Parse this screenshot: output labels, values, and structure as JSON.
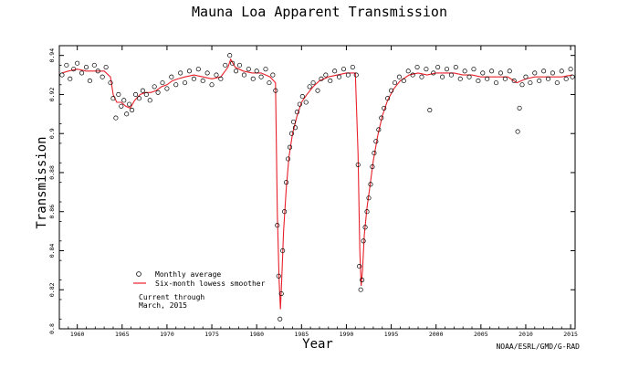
{
  "chart_data": {
    "type": "scatter",
    "title": "Mauna Loa Apparent Transmission",
    "xlabel": "Year",
    "ylabel": "Transmission",
    "xlim": [
      1958,
      2015.5
    ],
    "ylim": [
      0.8,
      0.945
    ],
    "x_ticks": [
      1960,
      1965,
      1970,
      1975,
      1980,
      1985,
      1990,
      1995,
      2000,
      2005,
      2010,
      2015
    ],
    "y_ticks": [
      0.8,
      0.82,
      0.84,
      0.86,
      0.88,
      0.9,
      0.92,
      0.94
    ],
    "y_tick_labels": [
      "0.8",
      "0.82",
      "0.84",
      "0.86",
      "0.88",
      "0.9",
      "0.92",
      "0.94"
    ],
    "grid": false,
    "legend_placement": "lower-left",
    "annotations": [
      "Current through",
      "March, 2015"
    ],
    "credit": "NOAA/ESRL/GMD/G-RAD",
    "series": [
      {
        "name": "Monthly average",
        "marker": "open-circle",
        "color": "#000000",
        "points": [
          [
            1958.3,
            0.93
          ],
          [
            1958.8,
            0.935
          ],
          [
            1959.2,
            0.928
          ],
          [
            1959.6,
            0.933
          ],
          [
            1960.0,
            0.936
          ],
          [
            1960.5,
            0.931
          ],
          [
            1961.0,
            0.934
          ],
          [
            1961.4,
            0.927
          ],
          [
            1961.9,
            0.935
          ],
          [
            1962.3,
            0.932
          ],
          [
            1962.8,
            0.929
          ],
          [
            1963.2,
            0.934
          ],
          [
            1963.7,
            0.926
          ],
          [
            1964.0,
            0.918
          ],
          [
            1964.3,
            0.908
          ],
          [
            1964.6,
            0.92
          ],
          [
            1964.9,
            0.914
          ],
          [
            1965.2,
            0.917
          ],
          [
            1965.5,
            0.91
          ],
          [
            1965.8,
            0.915
          ],
          [
            1966.1,
            0.912
          ],
          [
            1966.5,
            0.92
          ],
          [
            1966.9,
            0.918
          ],
          [
            1967.3,
            0.922
          ],
          [
            1967.7,
            0.92
          ],
          [
            1968.1,
            0.917
          ],
          [
            1968.6,
            0.924
          ],
          [
            1969.0,
            0.921
          ],
          [
            1969.5,
            0.926
          ],
          [
            1970.0,
            0.923
          ],
          [
            1970.5,
            0.929
          ],
          [
            1971.0,
            0.925
          ],
          [
            1971.5,
            0.931
          ],
          [
            1972.0,
            0.926
          ],
          [
            1972.5,
            0.932
          ],
          [
            1973.0,
            0.928
          ],
          [
            1973.5,
            0.933
          ],
          [
            1974.0,
            0.927
          ],
          [
            1974.5,
            0.931
          ],
          [
            1975.0,
            0.925
          ],
          [
            1975.5,
            0.93
          ],
          [
            1976.0,
            0.928
          ],
          [
            1976.5,
            0.935
          ],
          [
            1977.0,
            0.94
          ],
          [
            1977.3,
            0.936
          ],
          [
            1977.7,
            0.932
          ],
          [
            1978.1,
            0.935
          ],
          [
            1978.6,
            0.93
          ],
          [
            1979.1,
            0.933
          ],
          [
            1979.6,
            0.928
          ],
          [
            1980.0,
            0.932
          ],
          [
            1980.5,
            0.929
          ],
          [
            1981.0,
            0.933
          ],
          [
            1981.4,
            0.926
          ],
          [
            1981.8,
            0.93
          ],
          [
            1982.1,
            0.922
          ],
          [
            1982.3,
            0.853
          ],
          [
            1982.45,
            0.827
          ],
          [
            1982.6,
            0.805
          ],
          [
            1982.75,
            0.818
          ],
          [
            1982.9,
            0.84
          ],
          [
            1983.1,
            0.86
          ],
          [
            1983.3,
            0.875
          ],
          [
            1983.5,
            0.887
          ],
          [
            1983.7,
            0.893
          ],
          [
            1983.9,
            0.9
          ],
          [
            1984.1,
            0.906
          ],
          [
            1984.3,
            0.903
          ],
          [
            1984.5,
            0.911
          ],
          [
            1984.8,
            0.915
          ],
          [
            1985.1,
            0.919
          ],
          [
            1985.5,
            0.916
          ],
          [
            1985.9,
            0.924
          ],
          [
            1986.3,
            0.926
          ],
          [
            1986.8,
            0.922
          ],
          [
            1987.2,
            0.928
          ],
          [
            1987.7,
            0.93
          ],
          [
            1988.2,
            0.927
          ],
          [
            1988.7,
            0.932
          ],
          [
            1989.2,
            0.929
          ],
          [
            1989.7,
            0.933
          ],
          [
            1990.2,
            0.93
          ],
          [
            1990.7,
            0.934
          ],
          [
            1991.1,
            0.93
          ],
          [
            1991.3,
            0.884
          ],
          [
            1991.45,
            0.832
          ],
          [
            1991.6,
            0.82
          ],
          [
            1991.75,
            0.825
          ],
          [
            1991.9,
            0.845
          ],
          [
            1992.1,
            0.852
          ],
          [
            1992.3,
            0.86
          ],
          [
            1992.5,
            0.867
          ],
          [
            1992.7,
            0.874
          ],
          [
            1992.9,
            0.883
          ],
          [
            1993.1,
            0.89
          ],
          [
            1993.3,
            0.896
          ],
          [
            1993.6,
            0.902
          ],
          [
            1993.9,
            0.908
          ],
          [
            1994.2,
            0.913
          ],
          [
            1994.6,
            0.918
          ],
          [
            1995.0,
            0.922
          ],
          [
            1995.4,
            0.926
          ],
          [
            1995.9,
            0.929
          ],
          [
            1996.4,
            0.927
          ],
          [
            1996.9,
            0.932
          ],
          [
            1997.4,
            0.93
          ],
          [
            1997.9,
            0.934
          ],
          [
            1998.4,
            0.929
          ],
          [
            1998.9,
            0.933
          ],
          [
            1999.3,
            0.912
          ],
          [
            1999.7,
            0.931
          ],
          [
            2000.2,
            0.934
          ],
          [
            2000.7,
            0.929
          ],
          [
            2001.2,
            0.933
          ],
          [
            2001.7,
            0.93
          ],
          [
            2002.2,
            0.934
          ],
          [
            2002.7,
            0.928
          ],
          [
            2003.2,
            0.932
          ],
          [
            2003.7,
            0.929
          ],
          [
            2004.2,
            0.933
          ],
          [
            2004.7,
            0.927
          ],
          [
            2005.2,
            0.931
          ],
          [
            2005.7,
            0.928
          ],
          [
            2006.2,
            0.932
          ],
          [
            2006.7,
            0.926
          ],
          [
            2007.2,
            0.931
          ],
          [
            2007.7,
            0.928
          ],
          [
            2008.2,
            0.932
          ],
          [
            2008.7,
            0.927
          ],
          [
            2009.1,
            0.901
          ],
          [
            2009.3,
            0.913
          ],
          [
            2009.6,
            0.925
          ],
          [
            2010.0,
            0.929
          ],
          [
            2010.5,
            0.926
          ],
          [
            2011.0,
            0.931
          ],
          [
            2011.5,
            0.927
          ],
          [
            2012.0,
            0.932
          ],
          [
            2012.5,
            0.928
          ],
          [
            2013.0,
            0.931
          ],
          [
            2013.5,
            0.926
          ],
          [
            2014.0,
            0.932
          ],
          [
            2014.5,
            0.928
          ],
          [
            2015.0,
            0.933
          ],
          [
            2015.2,
            0.929
          ]
        ]
      },
      {
        "name": "Six-month lowess smoother",
        "marker": "line",
        "color": "#e8202a",
        "points": [
          [
            1958.3,
            0.931
          ],
          [
            1959.0,
            0.932
          ],
          [
            1960.0,
            0.933
          ],
          [
            1961.0,
            0.932
          ],
          [
            1962.0,
            0.932
          ],
          [
            1963.0,
            0.932
          ],
          [
            1963.7,
            0.929
          ],
          [
            1964.0,
            0.92
          ],
          [
            1964.4,
            0.916
          ],
          [
            1964.9,
            0.916
          ],
          [
            1965.4,
            0.914
          ],
          [
            1965.9,
            0.913
          ],
          [
            1966.4,
            0.917
          ],
          [
            1967.0,
            0.92
          ],
          [
            1967.6,
            0.921
          ],
          [
            1968.2,
            0.921
          ],
          [
            1968.8,
            0.922
          ],
          [
            1969.4,
            0.924
          ],
          [
            1970.0,
            0.925
          ],
          [
            1970.6,
            0.927
          ],
          [
            1971.2,
            0.928
          ],
          [
            1972.0,
            0.929
          ],
          [
            1973.0,
            0.93
          ],
          [
            1974.0,
            0.929
          ],
          [
            1975.0,
            0.928
          ],
          [
            1976.0,
            0.929
          ],
          [
            1976.8,
            0.934
          ],
          [
            1977.1,
            0.938
          ],
          [
            1977.6,
            0.934
          ],
          [
            1978.5,
            0.932
          ],
          [
            1979.5,
            0.931
          ],
          [
            1980.5,
            0.931
          ],
          [
            1981.5,
            0.929
          ],
          [
            1982.1,
            0.926
          ],
          [
            1982.3,
            0.86
          ],
          [
            1982.5,
            0.825
          ],
          [
            1982.65,
            0.81
          ],
          [
            1982.8,
            0.826
          ],
          [
            1983.0,
            0.85
          ],
          [
            1983.3,
            0.872
          ],
          [
            1983.6,
            0.888
          ],
          [
            1984.0,
            0.9
          ],
          [
            1984.5,
            0.909
          ],
          [
            1985.0,
            0.916
          ],
          [
            1985.6,
            0.92
          ],
          [
            1986.3,
            0.924
          ],
          [
            1987.0,
            0.927
          ],
          [
            1988.0,
            0.929
          ],
          [
            1989.0,
            0.93
          ],
          [
            1990.0,
            0.931
          ],
          [
            1991.0,
            0.931
          ],
          [
            1991.3,
            0.89
          ],
          [
            1991.5,
            0.84
          ],
          [
            1991.65,
            0.822
          ],
          [
            1991.8,
            0.83
          ],
          [
            1992.0,
            0.848
          ],
          [
            1992.3,
            0.862
          ],
          [
            1992.6,
            0.872
          ],
          [
            1993.0,
            0.886
          ],
          [
            1993.5,
            0.899
          ],
          [
            1994.0,
            0.909
          ],
          [
            1994.6,
            0.917
          ],
          [
            1995.3,
            0.923
          ],
          [
            1996.0,
            0.927
          ],
          [
            1997.0,
            0.93
          ],
          [
            1998.0,
            0.931
          ],
          [
            1999.0,
            0.93
          ],
          [
            2000.0,
            0.931
          ],
          [
            2001.0,
            0.931
          ],
          [
            2002.0,
            0.931
          ],
          [
            2003.0,
            0.93
          ],
          [
            2004.0,
            0.93
          ],
          [
            2005.0,
            0.929
          ],
          [
            2006.0,
            0.929
          ],
          [
            2007.0,
            0.929
          ],
          [
            2008.0,
            0.929
          ],
          [
            2009.0,
            0.926
          ],
          [
            2009.5,
            0.927
          ],
          [
            2010.0,
            0.928
          ],
          [
            2011.0,
            0.929
          ],
          [
            2012.0,
            0.929
          ],
          [
            2013.0,
            0.929
          ],
          [
            2014.0,
            0.929
          ],
          [
            2015.2,
            0.93
          ]
        ]
      }
    ]
  }
}
